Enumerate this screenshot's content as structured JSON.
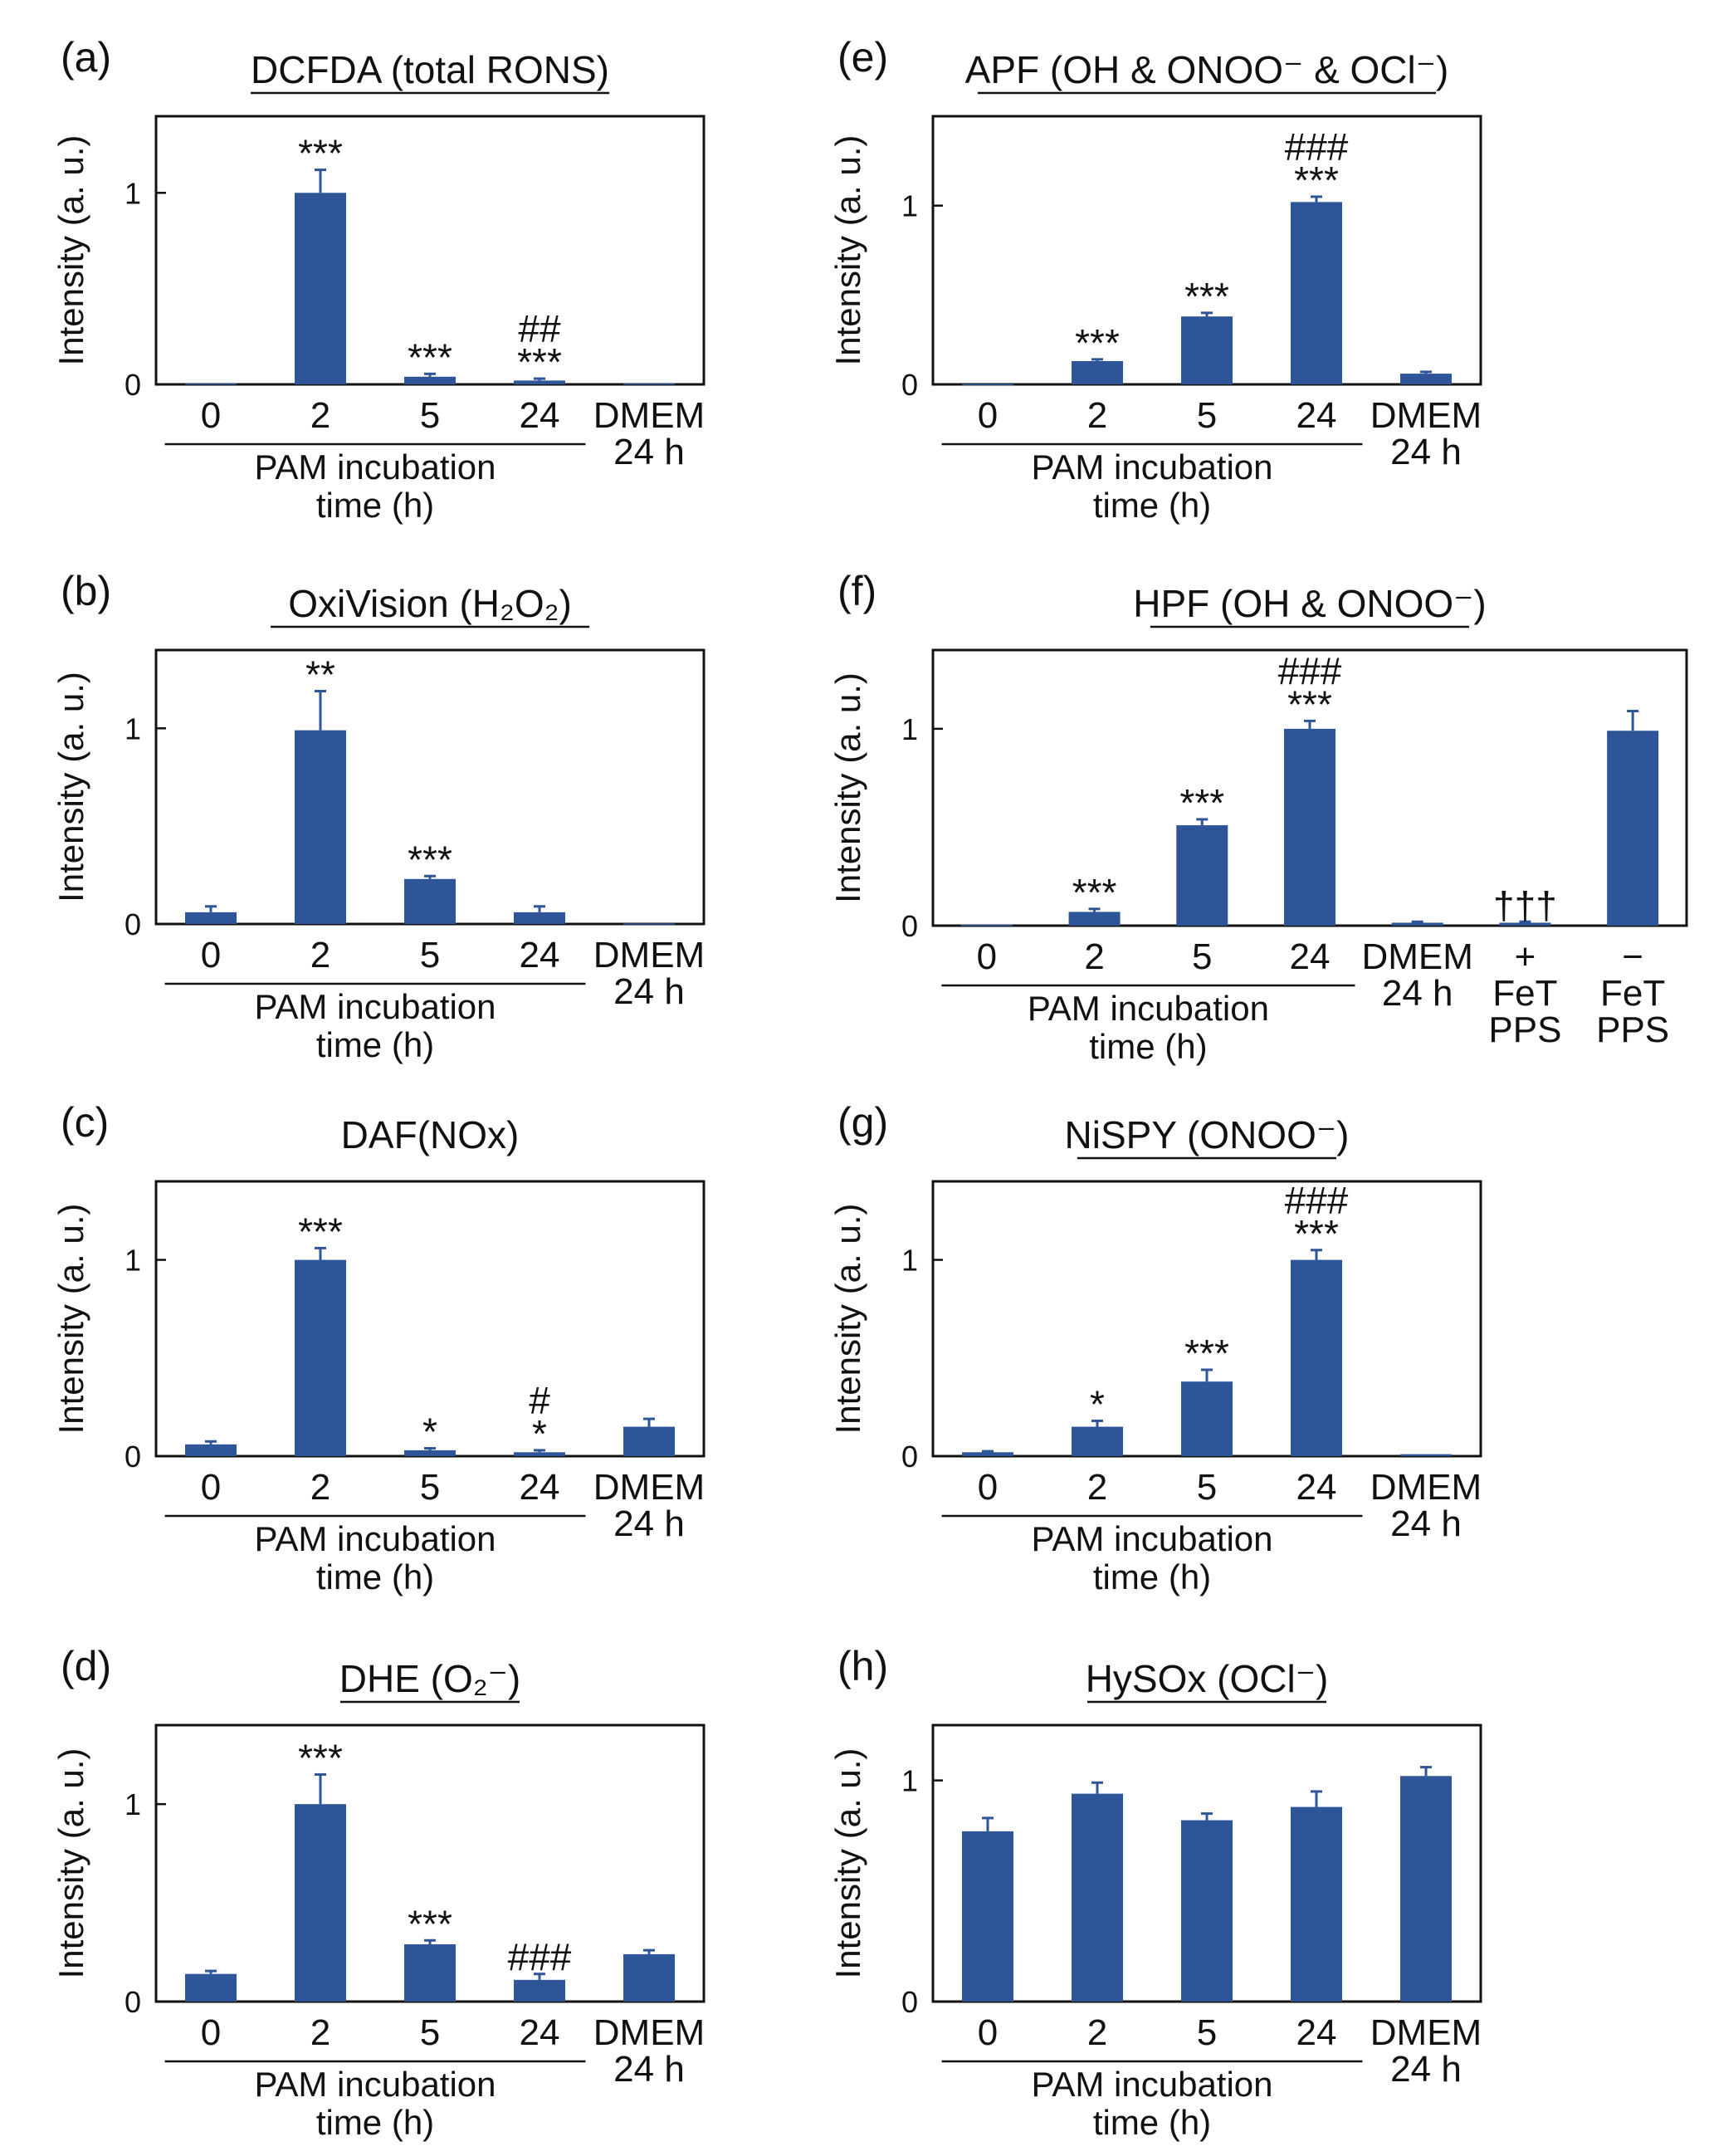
{
  "figure": {
    "bar_color": "#2e5597",
    "text_color": "#111111",
    "y_axis_label": "Intensity (a. u.)",
    "time_group_label_1": "PAM incubation",
    "time_group_label_2": "time (h)"
  },
  "chart_data": [
    {
      "panel": "(a)",
      "title": "DCFDA (total RONS)",
      "title_underlined": true,
      "type": "bar",
      "ylabel": "Intensity (a. u.)",
      "ylim": [
        0,
        1.4
      ],
      "yticks": [
        0,
        1
      ],
      "categories": [
        [
          "0"
        ],
        [
          "2"
        ],
        [
          "5"
        ],
        [
          "24"
        ],
        [
          "DMEM",
          "24 h"
        ]
      ],
      "values": [
        0.005,
        1.0,
        0.04,
        0.02,
        0.005
      ],
      "errors": [
        0.0,
        0.12,
        0.015,
        0.01,
        0.0
      ],
      "annotations": [
        [],
        [
          "***"
        ],
        [
          "***"
        ],
        [
          "##",
          "***"
        ],
        []
      ],
      "time_group": [
        0,
        3
      ]
    },
    {
      "panel": "(b)",
      "title": "OxiVision (H₂O₂)",
      "title_underlined": true,
      "type": "bar",
      "ylabel": "Intensity (a. u.)",
      "ylim": [
        0,
        1.4
      ],
      "yticks": [
        0,
        1
      ],
      "categories": [
        [
          "0"
        ],
        [
          "2"
        ],
        [
          "5"
        ],
        [
          "24"
        ],
        [
          "DMEM",
          "24 h"
        ]
      ],
      "values": [
        0.06,
        0.99,
        0.23,
        0.06,
        0.003
      ],
      "errors": [
        0.03,
        0.2,
        0.015,
        0.03,
        0.0
      ],
      "annotations": [
        [],
        [
          "**"
        ],
        [
          "***"
        ],
        [],
        []
      ],
      "time_group": [
        0,
        3
      ]
    },
    {
      "panel": "(c)",
      "title": "DAF(NOx)",
      "title_underlined": false,
      "type": "bar",
      "ylabel": "Intensity (a. u.)",
      "ylim": [
        0,
        1.4
      ],
      "yticks": [
        0,
        1
      ],
      "categories": [
        [
          "0"
        ],
        [
          "2"
        ],
        [
          "5"
        ],
        [
          "24"
        ],
        [
          "DMEM",
          "24 h"
        ]
      ],
      "values": [
        0.06,
        1.0,
        0.03,
        0.02,
        0.15
      ],
      "errors": [
        0.015,
        0.06,
        0.01,
        0.01,
        0.04
      ],
      "annotations": [
        [],
        [
          "***"
        ],
        [
          "*"
        ],
        [
          "#",
          "*"
        ],
        []
      ],
      "time_group": [
        0,
        3
      ]
    },
    {
      "panel": "(d)",
      "title": "DHE (O₂⁻)",
      "title_underlined": true,
      "type": "bar",
      "ylabel": "Intensity (a. u.)",
      "ylim": [
        0,
        1.4
      ],
      "yticks": [
        0,
        1
      ],
      "categories": [
        [
          "0"
        ],
        [
          "2"
        ],
        [
          "5"
        ],
        [
          "24"
        ],
        [
          "DMEM",
          "24 h"
        ]
      ],
      "values": [
        0.14,
        1.0,
        0.29,
        0.11,
        0.24
      ],
      "errors": [
        0.015,
        0.15,
        0.02,
        0.03,
        0.02
      ],
      "annotations": [
        [],
        [
          "***"
        ],
        [
          "***"
        ],
        [
          "###"
        ],
        []
      ],
      "time_group": [
        0,
        3
      ]
    },
    {
      "panel": "(e)",
      "title": "APF (OH & ONOO⁻ & OCl⁻)",
      "title_underlined": true,
      "type": "bar",
      "ylabel": "Intensity (a. u.)",
      "ylim": [
        0,
        1.5
      ],
      "yticks": [
        0,
        1
      ],
      "categories": [
        [
          "0"
        ],
        [
          "2"
        ],
        [
          "5"
        ],
        [
          "24"
        ],
        [
          "DMEM",
          "24 h"
        ]
      ],
      "values": [
        0.002,
        0.13,
        0.38,
        1.02,
        0.06
      ],
      "errors": [
        0.0,
        0.01,
        0.02,
        0.03,
        0.01
      ],
      "annotations": [
        [],
        [
          "***"
        ],
        [
          "***"
        ],
        [
          "###",
          "***"
        ],
        []
      ],
      "time_group": [
        0,
        3
      ]
    },
    {
      "panel": "(f)",
      "title": "HPF (OH & ONOO⁻)",
      "title_underlined": true,
      "type": "bar",
      "ylabel": "Intensity (a. u.)",
      "ylim": [
        0,
        1.4
      ],
      "yticks": [
        0,
        1
      ],
      "categories": [
        [
          "0"
        ],
        [
          "2"
        ],
        [
          "5"
        ],
        [
          "24"
        ],
        [
          "DMEM",
          "24 h"
        ],
        [
          "+",
          "FeT",
          "PPS"
        ],
        [
          "−",
          "FeT",
          "PPS"
        ]
      ],
      "values": [
        0.005,
        0.07,
        0.51,
        1.0,
        0.015,
        0.015,
        0.99
      ],
      "errors": [
        0.0,
        0.015,
        0.03,
        0.04,
        0.005,
        0.005,
        0.1
      ],
      "annotations": [
        [],
        [
          "***"
        ],
        [
          "***"
        ],
        [
          "###",
          "***"
        ],
        [],
        [
          "†††"
        ],
        []
      ],
      "time_group": [
        0,
        3
      ]
    },
    {
      "panel": "(g)",
      "title": "NiSPY (ONOO⁻)",
      "title_underlined": true,
      "type": "bar",
      "ylabel": "Intensity (a. u.)",
      "ylim": [
        0,
        1.4
      ],
      "yticks": [
        0,
        1
      ],
      "categories": [
        [
          "0"
        ],
        [
          "2"
        ],
        [
          "5"
        ],
        [
          "24"
        ],
        [
          "DMEM",
          "24 h"
        ]
      ],
      "values": [
        0.02,
        0.15,
        0.38,
        1.0,
        0.01
      ],
      "errors": [
        0.005,
        0.03,
        0.06,
        0.05,
        0.0
      ],
      "annotations": [
        [],
        [
          "*"
        ],
        [
          "***"
        ],
        [
          "###",
          "***"
        ],
        []
      ],
      "time_group": [
        0,
        3
      ]
    },
    {
      "panel": "(h)",
      "title": "HySOx (OCl⁻)",
      "title_underlined": true,
      "type": "bar",
      "ylabel": "Intensity (a. u.)",
      "ylim": [
        0,
        1.25
      ],
      "yticks": [
        0,
        1
      ],
      "categories": [
        [
          "0"
        ],
        [
          "2"
        ],
        [
          "5"
        ],
        [
          "24"
        ],
        [
          "DMEM",
          "24 h"
        ]
      ],
      "values": [
        0.77,
        0.94,
        0.82,
        0.88,
        1.02
      ],
      "errors": [
        0.06,
        0.05,
        0.03,
        0.07,
        0.04
      ],
      "annotations": [
        [],
        [],
        [],
        [],
        []
      ],
      "time_group": [
        0,
        3
      ]
    }
  ]
}
